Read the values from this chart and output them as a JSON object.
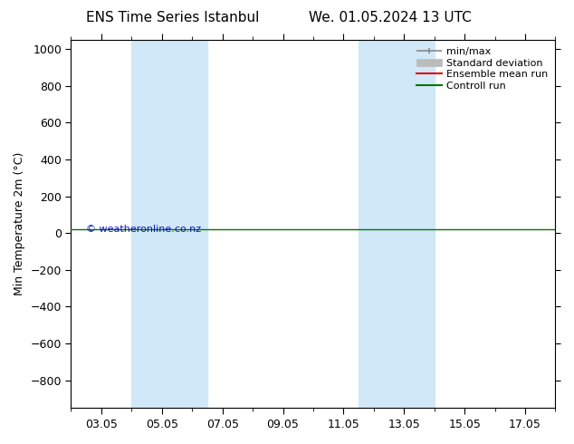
{
  "title_left": "ENS Time Series Istanbul",
  "title_right": "We. 01.05.2024 13 UTC",
  "ylabel": "Min Temperature 2m (°C)",
  "ylim_top": -950,
  "ylim_bottom": 1050,
  "yticks": [
    -800,
    -600,
    -400,
    -200,
    0,
    200,
    400,
    600,
    800,
    1000
  ],
  "xtick_labels": [
    "03.05",
    "05.05",
    "07.05",
    "09.05",
    "11.05",
    "13.05",
    "15.05",
    "17.05"
  ],
  "xtick_positions": [
    1,
    3,
    5,
    7,
    9,
    11,
    13,
    15
  ],
  "xlim": [
    0,
    16
  ],
  "shaded_bands": [
    {
      "x_start": 2,
      "x_end": 4.5
    },
    {
      "x_start": 9.5,
      "x_end": 12
    }
  ],
  "shade_color": "#d0e8f8",
  "control_run_y": 20,
  "control_run_color": "#007700",
  "ensemble_mean_color": "#dd0000",
  "watermark_text": "© weatheronline.co.nz",
  "watermark_color": "#0000bb",
  "background_color": "#ffffff",
  "legend_labels": [
    "min/max",
    "Standard deviation",
    "Ensemble mean run",
    "Controll run"
  ],
  "legend_colors": [
    "#888888",
    "#bbbbbb",
    "#dd0000",
    "#007700"
  ],
  "title_fontsize": 11,
  "tick_fontsize": 9,
  "ylabel_fontsize": 9
}
